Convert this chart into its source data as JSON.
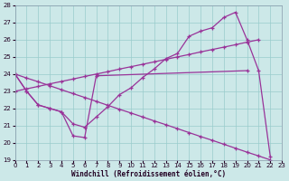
{
  "bg_color": "#cce8e8",
  "grid_color": "#99cccc",
  "line_color": "#993399",
  "xlabel": "Windchill (Refroidissement éolien,°C)",
  "xmin": 0,
  "xmax": 23,
  "ymin": 19,
  "ymax": 28,
  "lines": [
    {
      "x": [
        0,
        1,
        2,
        3,
        4,
        5,
        6,
        7,
        8,
        9,
        10,
        11,
        12,
        13,
        14,
        15,
        16,
        17,
        18,
        19,
        20,
        21,
        22
      ],
      "y": [
        24.0,
        23.0,
        22.2,
        22.0,
        21.8,
        21.1,
        20.9,
        21.5,
        22.1,
        22.8,
        23.2,
        23.8,
        24.3,
        24.9,
        25.2,
        26.2,
        26.5,
        26.7,
        27.3,
        27.6,
        26.0,
        24.2,
        19.2
      ]
    },
    {
      "x": [
        0,
        1,
        2,
        3,
        4,
        5,
        6,
        7,
        8,
        9,
        10,
        11,
        12,
        13,
        14,
        15,
        16,
        17,
        18,
        19,
        20,
        21
      ],
      "y": [
        23.0,
        23.14,
        23.28,
        23.43,
        23.57,
        23.71,
        23.86,
        24.0,
        24.14,
        24.29,
        24.43,
        24.57,
        24.71,
        24.86,
        25.0,
        25.14,
        25.29,
        25.43,
        25.57,
        25.71,
        25.86,
        26.0
      ]
    },
    {
      "x": [
        0,
        1,
        2,
        3,
        4,
        5,
        6,
        7,
        8,
        9,
        10,
        11,
        12,
        13,
        14,
        15,
        16,
        17,
        18,
        19,
        20,
        21,
        22
      ],
      "y": [
        24.0,
        23.77,
        23.55,
        23.32,
        23.09,
        22.86,
        22.64,
        22.41,
        22.18,
        21.95,
        21.73,
        21.5,
        21.27,
        21.05,
        20.82,
        20.59,
        20.36,
        20.14,
        19.91,
        19.68,
        19.45,
        19.23,
        19.0
      ]
    },
    {
      "comment": "Bottom zigzag: (0,24),(1,23),(2,22.2),(3,22),(4,21.8),(5,20.4),(6,20.3),(7,23.9),(20,24.2)",
      "x": [
        0,
        1,
        2,
        3,
        4,
        5,
        6,
        7,
        20
      ],
      "y": [
        24.0,
        23.0,
        22.2,
        22.0,
        21.8,
        20.4,
        20.3,
        23.9,
        24.2
      ]
    }
  ]
}
